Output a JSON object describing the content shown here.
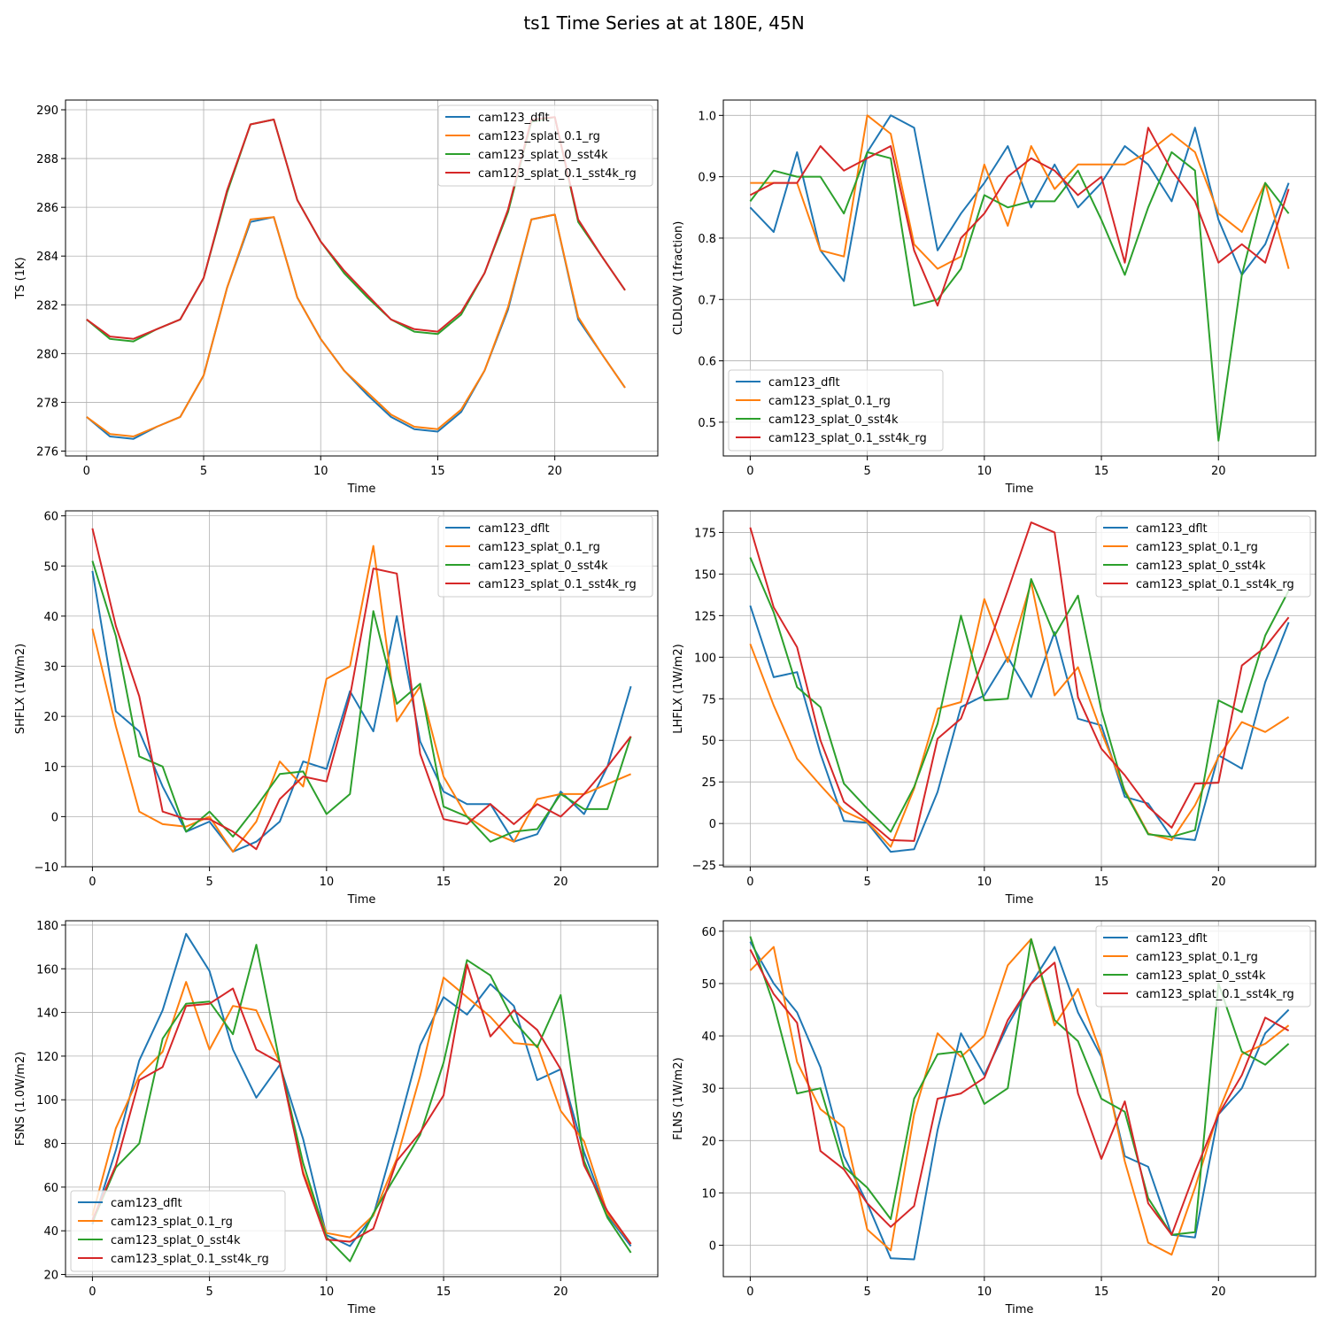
{
  "suptitle": "ts1 Time Series at at 180E, 45N",
  "colors": {
    "cam123_dflt": "#1f77b4",
    "cam123_splat_0.1_rg": "#ff7f0e",
    "cam123_splat_0_sst4k": "#2ca02c",
    "cam123_splat_0.1_sst4k_rg": "#d62728"
  },
  "chart_data": [
    {
      "type": "line",
      "xlabel": "Time",
      "ylabel": "TS (1K)",
      "xlim": [
        -0.9,
        24.4
      ],
      "ylim": [
        275.8,
        290.4
      ],
      "xticks": [
        0,
        5,
        10,
        15,
        20
      ],
      "yticks": [
        276,
        278,
        280,
        282,
        284,
        286,
        288,
        290
      ],
      "legend_loc": "upper right",
      "series": [
        {
          "name": "cam123_dflt",
          "values": [
            277.4,
            276.6,
            276.5,
            277.0,
            277.4,
            279.1,
            282.7,
            285.4,
            285.6,
            282.3,
            280.6,
            279.3,
            278.3,
            277.4,
            276.9,
            276.8,
            277.6,
            279.3,
            281.8,
            285.5,
            285.7,
            281.4,
            280.0,
            278.6
          ]
        },
        {
          "name": "cam123_splat_0.1_rg",
          "values": [
            277.4,
            276.7,
            276.6,
            277.0,
            277.4,
            279.1,
            282.7,
            285.5,
            285.6,
            282.3,
            280.6,
            279.3,
            278.4,
            277.5,
            277.0,
            276.9,
            277.7,
            279.3,
            281.9,
            285.5,
            285.7,
            281.5,
            280.0,
            278.6
          ]
        },
        {
          "name": "cam123_splat_0_sst4k",
          "values": [
            281.4,
            280.6,
            280.5,
            281.0,
            281.4,
            283.1,
            286.6,
            289.4,
            289.6,
            286.3,
            284.6,
            283.3,
            282.3,
            281.4,
            280.9,
            280.8,
            281.6,
            283.3,
            285.8,
            289.5,
            289.7,
            285.4,
            284.0,
            282.6
          ]
        },
        {
          "name": "cam123_splat_0.1_sst4k_rg",
          "values": [
            281.4,
            280.7,
            280.6,
            281.0,
            281.4,
            283.1,
            286.7,
            289.4,
            289.6,
            286.3,
            284.6,
            283.4,
            282.4,
            281.4,
            281.0,
            280.9,
            281.7,
            283.3,
            285.9,
            289.6,
            289.7,
            285.5,
            284.0,
            282.6
          ]
        }
      ]
    },
    {
      "type": "line",
      "xlabel": "Time",
      "ylabel": "CLDLOW (1fraction)",
      "xlim": [
        -1.15,
        24.15
      ],
      "ylim": [
        0.445,
        1.025
      ],
      "xticks": [
        0,
        5,
        10,
        15,
        20
      ],
      "yticks": [
        0.5,
        0.6,
        0.7,
        0.8,
        0.9,
        1.0
      ],
      "legend_loc": "lower left",
      "series": [
        {
          "name": "cam123_dflt",
          "values": [
            0.85,
            0.81,
            0.94,
            0.78,
            0.73,
            0.94,
            1.0,
            0.98,
            0.78,
            0.84,
            0.89,
            0.95,
            0.85,
            0.92,
            0.85,
            0.89,
            0.95,
            0.92,
            0.86,
            0.98,
            0.83,
            0.74,
            0.79,
            0.89
          ]
        },
        {
          "name": "cam123_splat_0.1_rg",
          "values": [
            0.89,
            0.89,
            0.89,
            0.78,
            0.77,
            1.0,
            0.97,
            0.79,
            0.75,
            0.77,
            0.92,
            0.82,
            0.95,
            0.88,
            0.92,
            0.92,
            0.92,
            0.94,
            0.97,
            0.94,
            0.84,
            0.81,
            0.89,
            0.75
          ]
        },
        {
          "name": "cam123_splat_0_sst4k",
          "values": [
            0.86,
            0.91,
            0.9,
            0.9,
            0.84,
            0.94,
            0.93,
            0.69,
            0.7,
            0.75,
            0.87,
            0.85,
            0.86,
            0.86,
            0.91,
            0.83,
            0.74,
            0.85,
            0.94,
            0.91,
            0.47,
            0.74,
            0.89,
            0.84
          ]
        },
        {
          "name": "cam123_splat_0.1_sst4k_rg",
          "values": [
            0.87,
            0.89,
            0.89,
            0.95,
            0.91,
            0.93,
            0.95,
            0.78,
            0.69,
            0.8,
            0.84,
            0.9,
            0.93,
            0.91,
            0.87,
            0.9,
            0.76,
            0.98,
            0.91,
            0.86,
            0.76,
            0.79,
            0.76,
            0.88
          ]
        }
      ]
    },
    {
      "type": "line",
      "xlabel": "Time",
      "ylabel": "SHFLX (1W/m2)",
      "xlim": [
        -1.15,
        24.15
      ],
      "ylim": [
        -10,
        61
      ],
      "xticks": [
        0,
        5,
        10,
        15,
        20
      ],
      "yticks": [
        -10,
        0,
        10,
        20,
        30,
        40,
        50,
        60
      ],
      "legend_loc": "upper right",
      "series": [
        {
          "name": "cam123_dflt",
          "values": [
            49,
            21,
            17,
            6,
            -3,
            -1,
            -7,
            -5,
            -1,
            11,
            9.5,
            25,
            17,
            40,
            15,
            5,
            2.5,
            2.5,
            -5,
            -3.5,
            5,
            0.5,
            10,
            26
          ]
        },
        {
          "name": "cam123_splat_0.1_rg",
          "values": [
            37.5,
            18,
            1,
            -1.5,
            -2,
            0,
            -7,
            -1,
            11,
            6,
            27.5,
            30,
            54,
            19,
            26,
            8,
            0,
            -3,
            -5,
            3.5,
            4.5,
            4.5,
            6.5,
            8.5
          ]
        },
        {
          "name": "cam123_splat_0_sst4k",
          "values": [
            51,
            36,
            12,
            10,
            -3,
            1,
            -4,
            2,
            8.5,
            9,
            0.5,
            4.5,
            41,
            22.5,
            26.5,
            2,
            0,
            -5,
            -3,
            -2.5,
            4.5,
            1.5,
            1.5,
            16
          ]
        },
        {
          "name": "cam123_splat_0.1_sst4k_rg",
          "values": [
            57.5,
            38,
            24,
            1,
            -0.5,
            -0.5,
            -3,
            -6.5,
            3.5,
            8,
            7,
            24,
            49.5,
            48.5,
            12.5,
            -0.5,
            -1.5,
            2.5,
            -1.5,
            2.5,
            0,
            4.5,
            10,
            16
          ]
        }
      ]
    },
    {
      "type": "line",
      "xlabel": "Time",
      "ylabel": "LHFLX (1W/m2)",
      "xlim": [
        -1.15,
        24.15
      ],
      "ylim": [
        -26,
        188
      ],
      "xticks": [
        0,
        5,
        10,
        15,
        20
      ],
      "yticks": [
        -25,
        0,
        25,
        50,
        75,
        100,
        125,
        150,
        175
      ],
      "legend_loc": "upper right",
      "series": [
        {
          "name": "cam123_dflt",
          "values": [
            131,
            88,
            91,
            42,
            1.5,
            0.5,
            -17,
            -15.5,
            19,
            70,
            77,
            100,
            76,
            115,
            63,
            59,
            16,
            12,
            -8.5,
            -10,
            41,
            33,
            85,
            121
          ]
        },
        {
          "name": "cam123_splat_0.1_rg",
          "values": [
            108,
            71,
            39,
            23,
            7.5,
            1,
            -14,
            21,
            69,
            73,
            135,
            97,
            145,
            77,
            94,
            55,
            20,
            -6,
            -10,
            11,
            40,
            61,
            55,
            64
          ]
        },
        {
          "name": "cam123_splat_0_sst4k",
          "values": [
            160,
            127,
            82,
            70,
            24,
            9,
            -5,
            22,
            60,
            125,
            74,
            75,
            147,
            113,
            137,
            68,
            19,
            -6.5,
            -8,
            -4,
            74,
            67,
            113,
            140
          ]
        },
        {
          "name": "cam123_splat_0.1_sst4k_rg",
          "values": [
            178,
            130,
            106,
            50,
            13,
            2,
            -10,
            -10.5,
            51,
            63,
            100,
            140,
            181,
            175,
            76,
            45,
            29,
            10,
            -2.5,
            24,
            24.5,
            95,
            106,
            124
          ]
        }
      ]
    },
    {
      "type": "line",
      "xlabel": "Time",
      "ylabel": "FSNS (1.0W/m2)",
      "xlim": [
        -1.15,
        24.15
      ],
      "ylim": [
        19,
        182
      ],
      "xticks": [
        0,
        5,
        10,
        15,
        20
      ],
      "yticks": [
        20,
        40,
        60,
        80,
        100,
        120,
        140,
        160,
        180
      ],
      "legend_loc": "lower left",
      "series": [
        {
          "name": "cam123_dflt",
          "values": [
            43,
            77,
            118,
            141,
            176,
            159,
            123,
            101,
            116,
            82,
            38,
            33,
            47,
            85,
            125,
            147,
            139,
            153,
            143,
            109,
            114,
            76,
            47,
            33
          ]
        },
        {
          "name": "cam123_splat_0.1_rg",
          "values": [
            47,
            87,
            111,
            122,
            154,
            123,
            143,
            141,
            117,
            67,
            39,
            37,
            47,
            73,
            111,
            156,
            147,
            138,
            126,
            125,
            95,
            81,
            48,
            34
          ]
        },
        {
          "name": "cam123_splat_0_sst4k",
          "values": [
            44,
            69,
            80,
            128,
            144,
            145,
            130,
            171,
            117,
            71,
            37,
            26,
            48,
            66,
            84,
            117,
            164,
            157,
            136,
            124,
            148,
            72,
            46,
            30
          ]
        },
        {
          "name": "cam123_splat_0.1_sst4k_rg",
          "values": [
            45,
            70,
            109,
            115,
            143,
            144,
            151,
            123,
            117,
            66,
            36,
            35,
            41,
            72,
            85,
            102,
            162,
            129,
            141,
            132,
            114,
            70,
            49,
            34
          ]
        }
      ]
    },
    {
      "type": "line",
      "xlabel": "Time",
      "ylabel": "FLNS (1W/m2)",
      "xlim": [
        -1.15,
        24.15
      ],
      "ylim": [
        -6,
        62
      ],
      "xticks": [
        0,
        5,
        10,
        15,
        20
      ],
      "yticks": [
        0,
        10,
        20,
        30,
        40,
        50,
        60
      ],
      "legend_loc": "upper right",
      "series": [
        {
          "name": "cam123_dflt",
          "values": [
            58,
            50,
            44.5,
            34,
            17,
            8,
            -2.5,
            -2.7,
            22,
            40.5,
            32.5,
            42,
            50,
            57,
            44.5,
            36,
            17,
            15,
            2,
            1.5,
            25,
            30,
            40.5,
            45
          ]
        },
        {
          "name": "cam123_splat_0.1_rg",
          "values": [
            52.5,
            57,
            35,
            26,
            22.5,
            3,
            -1,
            25,
            40.5,
            36,
            40,
            53.5,
            58.5,
            42,
            49,
            36.5,
            16,
            0.5,
            -1.8,
            11,
            25.5,
            36.5,
            38.5,
            42
          ]
        },
        {
          "name": "cam123_splat_0_sst4k",
          "values": [
            59,
            46,
            29,
            30,
            15,
            11,
            5,
            28,
            36.5,
            37,
            27,
            30,
            58.5,
            43,
            39,
            28,
            25.5,
            9,
            2,
            2.5,
            50,
            37,
            34.5,
            38.5
          ]
        },
        {
          "name": "cam123_splat_0.1_sst4k_rg",
          "values": [
            56.5,
            48,
            42.5,
            18,
            14.5,
            8,
            3.5,
            7.5,
            28,
            29,
            32,
            43,
            50,
            54,
            29,
            16.5,
            27.5,
            8,
            2,
            14,
            25,
            32.5,
            43.5,
            41
          ]
        }
      ]
    }
  ]
}
